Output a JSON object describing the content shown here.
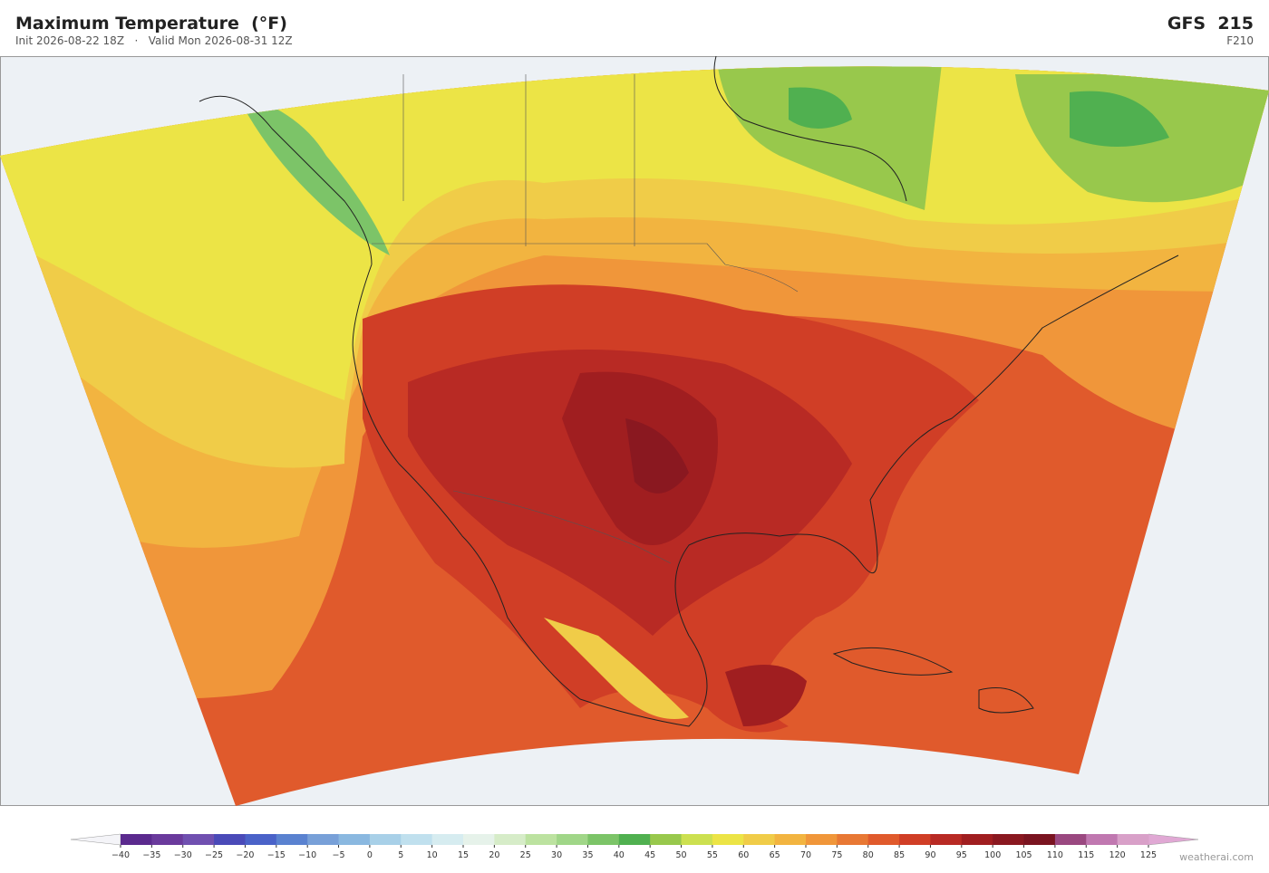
{
  "header": {
    "title": "Maximum Temperature  (°F)",
    "subtitle": "Init 2026-08-22 18Z   ·   Valid Mon 2026-08-31 12Z",
    "model": "GFS  215",
    "forecast_hour": "F210"
  },
  "colorbar": {
    "lim": [
      -40,
      125
    ],
    "ticks": [
      {
        "value": -40,
        "label": "−40"
      },
      {
        "value": -35,
        "label": "−35"
      },
      {
        "value": -30,
        "label": "−30"
      },
      {
        "value": -25,
        "label": "−25"
      },
      {
        "value": -20,
        "label": "−20"
      },
      {
        "value": -15,
        "label": "−15"
      },
      {
        "value": -10,
        "label": "−10"
      },
      {
        "value": -5,
        "label": "−5"
      },
      0,
      5,
      10,
      15,
      20,
      25,
      30,
      35,
      40,
      45,
      50,
      55,
      60,
      65,
      70,
      75,
      80,
      85,
      90,
      95,
      100,
      105,
      110,
      115,
      120,
      125
    ],
    "colors": [
      "#5b2a8e",
      "#6a3a9c",
      "#7050b0",
      "#4a4ab8",
      "#4a62c8",
      "#5a82d0",
      "#78a0d8",
      "#8ab8e0",
      "#a8d0e8",
      "#c0e0ee",
      "#d6ecf0",
      "#e6f2ea",
      "#d6ecc8",
      "#bce2a0",
      "#a0d688",
      "#7cc468",
      "#50b050",
      "#98c84c",
      "#cce050",
      "#ece446",
      "#f0cc48",
      "#f2b440",
      "#f0963a",
      "#e87834",
      "#e05a2c",
      "#d03e26",
      "#b82a24",
      "#a01e20",
      "#8a1820",
      "#7a1420",
      "#9a4880",
      "#c078b0",
      "#d8a0c8"
    ],
    "under_color": "#f4f4f8",
    "over_color": "#e0a8d4"
  },
  "credit": "weatherai.com"
}
